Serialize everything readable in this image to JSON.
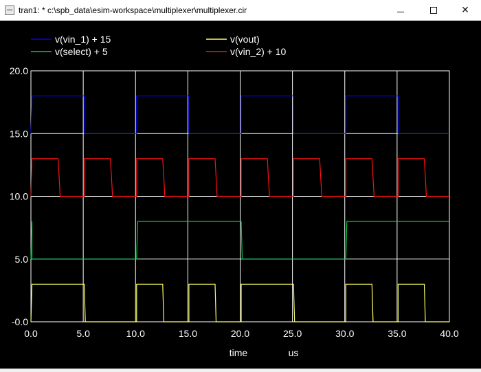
{
  "window": {
    "title": "tran1: * c:\\spb_data\\esim-workspace\\multiplexer\\multiplexer.cir",
    "minimize_icon": "minimize-icon",
    "maximize_icon": "maximize-icon",
    "close_icon": "close-icon",
    "close_glyph": "✕"
  },
  "chart_data": {
    "type": "line",
    "xlabel": "time",
    "xunit": "us",
    "xlim": [
      0,
      40
    ],
    "ylim": [
      0,
      20
    ],
    "xticks": [
      0,
      5,
      10,
      15,
      20,
      25,
      30,
      35,
      40
    ],
    "yticks": [
      0,
      5,
      10,
      15,
      20
    ],
    "xtick_labels": [
      "0.0",
      "5.0",
      "10.0",
      "15.0",
      "20.0",
      "25.0",
      "30.0",
      "35.0",
      "40.0"
    ],
    "ytick_labels": [
      "-0.0",
      "5.0",
      "10.0",
      "15.0",
      "20.0"
    ],
    "grid": true,
    "background": "#000000",
    "grid_color": "#ffffff",
    "legend_position": "top",
    "series": [
      {
        "name": "v(vin_1) + 15",
        "color": "#0000ff",
        "x": [
          0,
          0.1,
          5.1,
          5.1,
          10.1,
          10.1,
          15.1,
          15.1,
          20.1,
          20.1,
          25.1,
          25.1,
          30.1,
          30.1,
          35.1,
          35.1,
          40
        ],
        "y": [
          15,
          18,
          18,
          15,
          15,
          18,
          18,
          15,
          15,
          18,
          18,
          15,
          15,
          18,
          18,
          15,
          15
        ]
      },
      {
        "name": "v(vout)",
        "color": "#ffff66",
        "x": [
          0,
          0.1,
          5.1,
          5.2,
          10.1,
          10.1,
          12.6,
          12.7,
          15.1,
          15.1,
          17.6,
          17.7,
          20.1,
          20.1,
          25.1,
          25.2,
          30.1,
          30.1,
          32.6,
          32.7,
          35.1,
          35.1,
          37.6,
          37.7,
          40
        ],
        "y": [
          0,
          3,
          3,
          0,
          0,
          3,
          3,
          0,
          0,
          3,
          3,
          0,
          0,
          3,
          3,
          0,
          0,
          3,
          3,
          0,
          0,
          3,
          3,
          0,
          0
        ]
      },
      {
        "name": "v(select) + 5",
        "color": "#00cc44",
        "x": [
          0,
          0.1,
          0.1,
          10.1,
          10.2,
          20.1,
          20.2,
          30.1,
          30.2,
          40
        ],
        "y": [
          5,
          8,
          5,
          5,
          8,
          8,
          5,
          5,
          8,
          8
        ]
      },
      {
        "name": "v(vin_2) + 10",
        "color": "#ff1111",
        "x": [
          0,
          0.1,
          2.6,
          2.8,
          5.1,
          5.1,
          7.6,
          7.8,
          10.1,
          10.1,
          12.6,
          12.8,
          15.1,
          15.1,
          17.6,
          17.8,
          20.1,
          20.1,
          22.6,
          22.8,
          25.1,
          25.1,
          27.6,
          27.8,
          30.1,
          30.1,
          32.6,
          32.8,
          35.1,
          35.1,
          37.6,
          37.8,
          40
        ],
        "y": [
          10,
          13,
          13,
          10,
          10,
          13,
          13,
          10,
          10,
          13,
          13,
          10,
          10,
          13,
          13,
          10,
          10,
          13,
          13,
          10,
          10,
          13,
          13,
          10,
          10,
          13,
          13,
          10,
          10,
          13,
          13,
          10,
          10
        ]
      }
    ]
  }
}
